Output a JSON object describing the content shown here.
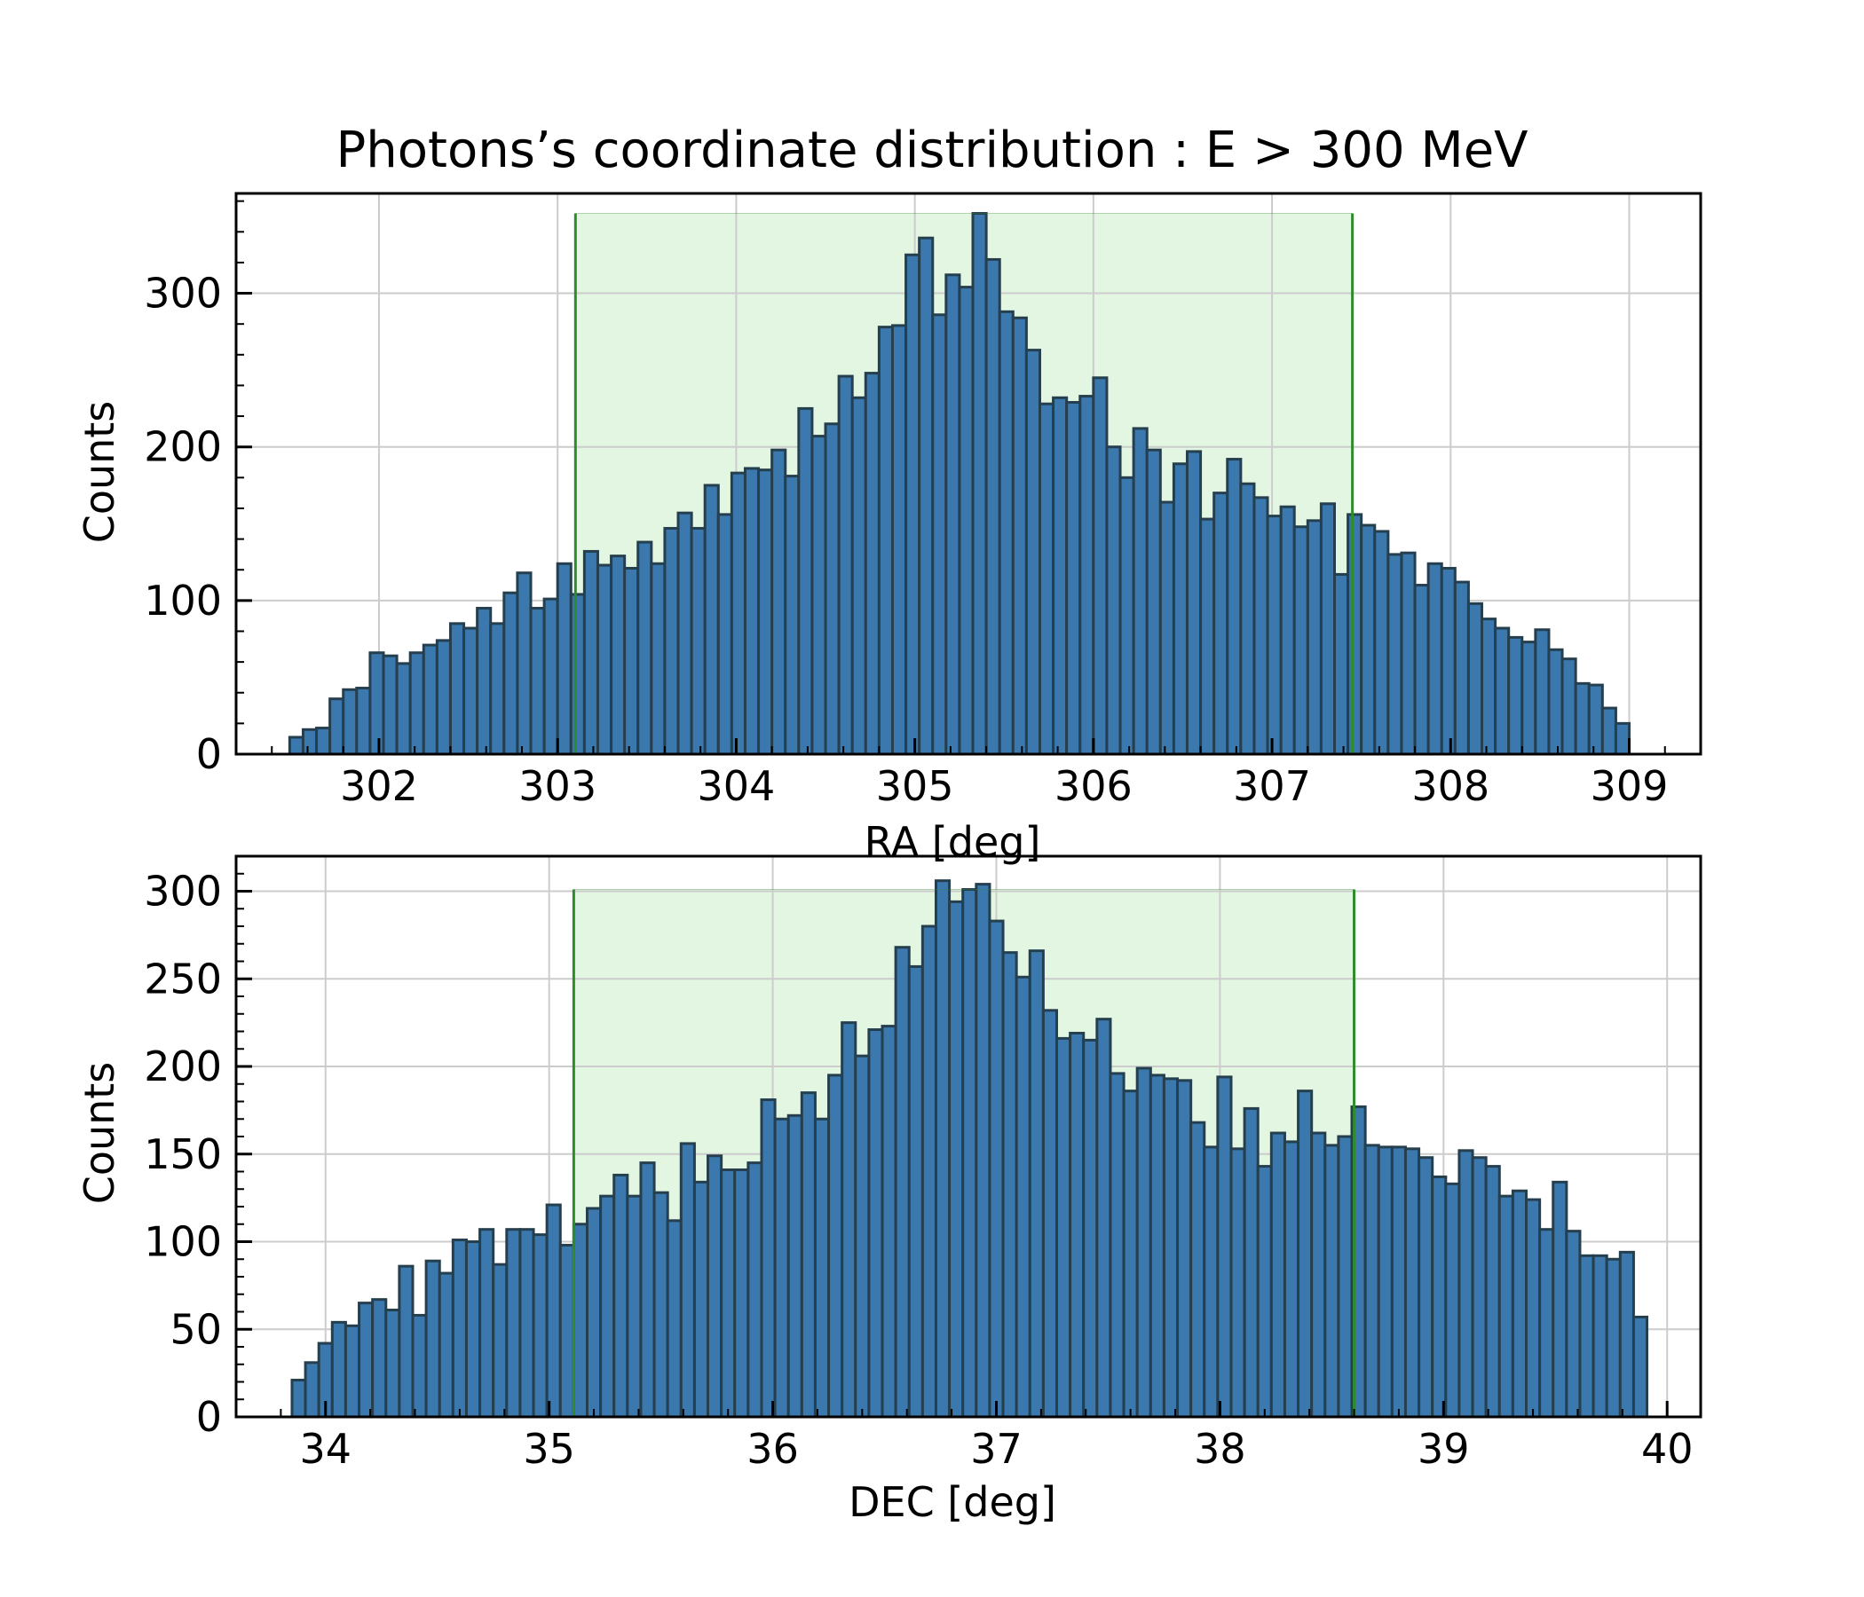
{
  "title": "Photons’s coordinate distribution : E > 300 MeV",
  "colors": {
    "bar_fill": "#3b78ad",
    "bar_edge": "#253f4f",
    "band_fill": "#e2f6e2",
    "band_line": "#2e8b2e",
    "grid": "#cccccc"
  },
  "chart_data": [
    {
      "type": "bar",
      "xlabel": "RA [deg]",
      "ylabel": "Counts",
      "xlim": [
        301.2,
        309.4
      ],
      "ylim": [
        0,
        365
      ],
      "xticks": [
        302,
        303,
        304,
        305,
        306,
        307,
        308,
        309
      ],
      "yticks": [
        0,
        100,
        200,
        300
      ],
      "grid": true,
      "bin_start": 301.5,
      "bin_width": 0.075,
      "band": [
        303.1,
        307.45
      ],
      "band_top": 352,
      "values": [
        11,
        16,
        17,
        36,
        42,
        43,
        66,
        64,
        59,
        66,
        71,
        74,
        85,
        82,
        95,
        85,
        105,
        118,
        95,
        101,
        124,
        104,
        132,
        123,
        129,
        121,
        138,
        124,
        147,
        157,
        147,
        175,
        156,
        183,
        186,
        185,
        198,
        181,
        225,
        207,
        215,
        246,
        232,
        248,
        278,
        279,
        325,
        336,
        286,
        312,
        304,
        352,
        322,
        288,
        284,
        263,
        228,
        232,
        229,
        233,
        245,
        200,
        180,
        212,
        198,
        164,
        189,
        197,
        153,
        170,
        192,
        176,
        167,
        155,
        161,
        148,
        152,
        163,
        117,
        156,
        149,
        145,
        130,
        131,
        110,
        124,
        121,
        112,
        98,
        88,
        82,
        76,
        73,
        81,
        68,
        62,
        46,
        45,
        30,
        20
      ]
    },
    {
      "type": "bar",
      "xlabel": "DEC [deg]",
      "ylabel": "Counts",
      "xlim": [
        33.6,
        40.15
      ],
      "ylim": [
        0,
        320
      ],
      "xticks": [
        34,
        35,
        36,
        37,
        38,
        39,
        40
      ],
      "yticks": [
        0,
        50,
        100,
        150,
        200,
        250,
        300
      ],
      "grid": true,
      "bin_start": 33.85,
      "bin_width": 0.06,
      "band": [
        35.11,
        38.6
      ],
      "band_top": 301,
      "values": [
        21,
        31,
        42,
        54,
        52,
        65,
        67,
        61,
        86,
        58,
        89,
        82,
        101,
        100,
        107,
        87,
        107,
        107,
        104,
        121,
        98,
        110,
        119,
        126,
        138,
        126,
        145,
        128,
        112,
        156,
        134,
        149,
        141,
        141,
        145,
        181,
        170,
        172,
        185,
        170,
        195,
        225,
        206,
        221,
        223,
        268,
        257,
        280,
        306,
        294,
        301,
        304,
        283,
        265,
        251,
        266,
        232,
        216,
        219,
        215,
        227,
        196,
        186,
        199,
        195,
        193,
        192,
        168,
        154,
        194,
        153,
        176,
        143,
        162,
        157,
        186,
        162,
        155,
        160,
        177,
        155,
        154,
        154,
        153,
        148,
        137,
        133,
        152,
        148,
        143,
        126,
        129,
        124,
        107,
        134,
        106,
        92,
        92,
        90,
        94,
        57
      ]
    }
  ]
}
